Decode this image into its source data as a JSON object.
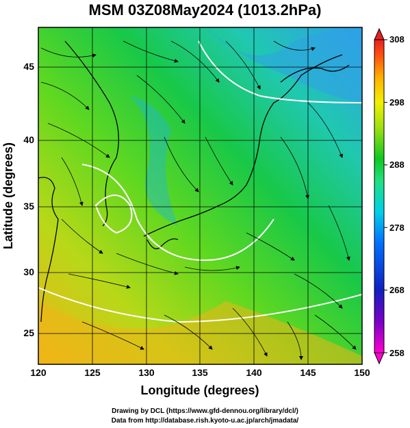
{
  "title": "MSM 03Z08May2024 (1013.2hPa)",
  "x_axis": {
    "label": "Longitude (degrees)",
    "range": [
      120,
      150
    ],
    "ticks": [
      "120",
      "125",
      "130",
      "135",
      "140",
      "145",
      "150"
    ]
  },
  "y_axis": {
    "label": "Latitude  (degrees)",
    "range": [
      22.4,
      47.6
    ],
    "ticks": [
      "25",
      "30",
      "35",
      "40",
      "45"
    ]
  },
  "colorbar": {
    "range": [
      258,
      308
    ],
    "ticks": [
      "258",
      "268",
      "278",
      "288",
      "298",
      "308"
    ],
    "colors": [
      "#ff00d0",
      "#7a00c8",
      "#1020c0",
      "#0070ff",
      "#00d0e8",
      "#20e080",
      "#10c820",
      "#a0e010",
      "#f0f000",
      "#ffb000",
      "#ff5010",
      "#e82020"
    ]
  },
  "field_colors": {
    "warm": "#f0b418",
    "mild": "#90e020",
    "cool": "#18c848",
    "cold": "#20b8d8",
    "coldest": "#30a0e8"
  },
  "credits": {
    "line1": "Drawing by DCL (https://www.gfd-dennou.org/library/dcl/)",
    "line2": "Data from http://database.rish.kyoto-u.ac.jp/arch/jmadata/"
  }
}
